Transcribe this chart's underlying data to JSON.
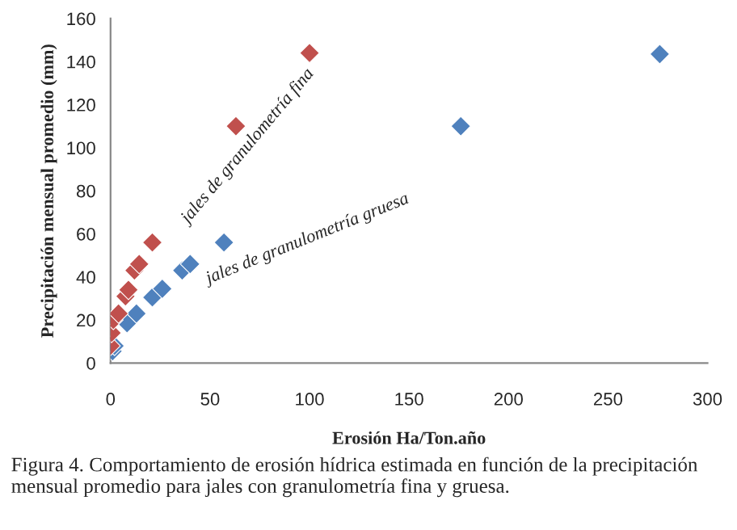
{
  "chart_data": {
    "type": "scatter",
    "xlabel": "Erosión Ha/Ton.año",
    "ylabel": "Precipitación mensual promedio (mm)",
    "xlim": [
      0,
      300
    ],
    "ylim": [
      0,
      160
    ],
    "xticks": [
      0,
      50,
      100,
      150,
      200,
      250,
      300
    ],
    "yticks": [
      0,
      20,
      40,
      60,
      80,
      100,
      120,
      140,
      160
    ],
    "grid": false,
    "legend": false,
    "marker": "diamond",
    "series": [
      {
        "color": "#c0504d",
        "x": [
          0,
          0.5,
          1.4,
          4,
          7.5,
          9,
          12,
          14.4,
          21,
          63,
          100
        ],
        "values": [
          8,
          14,
          20,
          23,
          31,
          34,
          43,
          46,
          56,
          110,
          144
        ]
      },
      {
        "color": "#4f81bd",
        "x": [
          1,
          2,
          8.3,
          13,
          21,
          26,
          36,
          40,
          57,
          176,
          276
        ],
        "values": [
          5.5,
          8,
          18.5,
          23,
          30.5,
          34.5,
          43,
          46,
          56,
          110,
          143.5
        ]
      }
    ],
    "annotations": [
      "jales de granulometría fina",
      "jales de granulometría gruesa",
      "Figura 4. Comportamiento de erosión hídrica estimada en función de la precipitación mensual promedio para jales con granulometría fina y gruesa."
    ]
  }
}
